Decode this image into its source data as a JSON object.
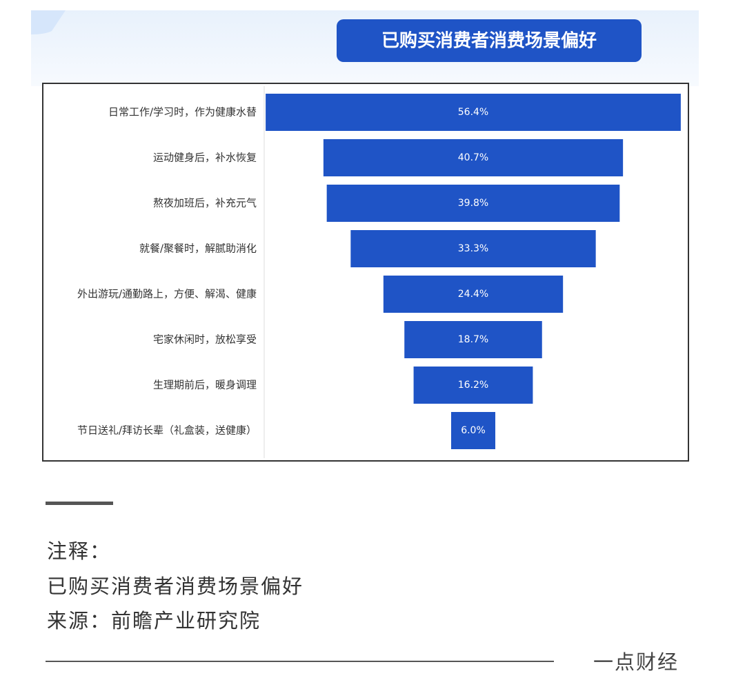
{
  "chart_data": {
    "type": "funnel",
    "title": "已购买消费者消费场景偏好",
    "categories": [
      "日常工作/学习时，作为健康水替",
      "运动健身后，补水恢复",
      "熬夜加班后，补充元气",
      "就餐/聚餐时，解腻助消化",
      "外出游玩/通勤路上，方便、解渴、健康",
      "宅家休闲时，放松享受",
      "生理期前后，暖身调理",
      "节日送礼/拜访长辈（礼盒装，送健康）"
    ],
    "values": [
      56.4,
      40.7,
      39.8,
      33.3,
      24.4,
      18.7,
      16.2,
      6.0
    ],
    "value_labels": [
      "56.4%",
      "40.7%",
      "39.8%",
      "33.3%",
      "24.4%",
      "18.7%",
      "16.2%",
      "6.0%"
    ],
    "color": "#1f54c6"
  },
  "footer": {
    "note_label": "注释：",
    "note": "已购买消费者消费场景偏好",
    "source": "来源：前瞻产业研究院",
    "brand": "一点财经"
  }
}
